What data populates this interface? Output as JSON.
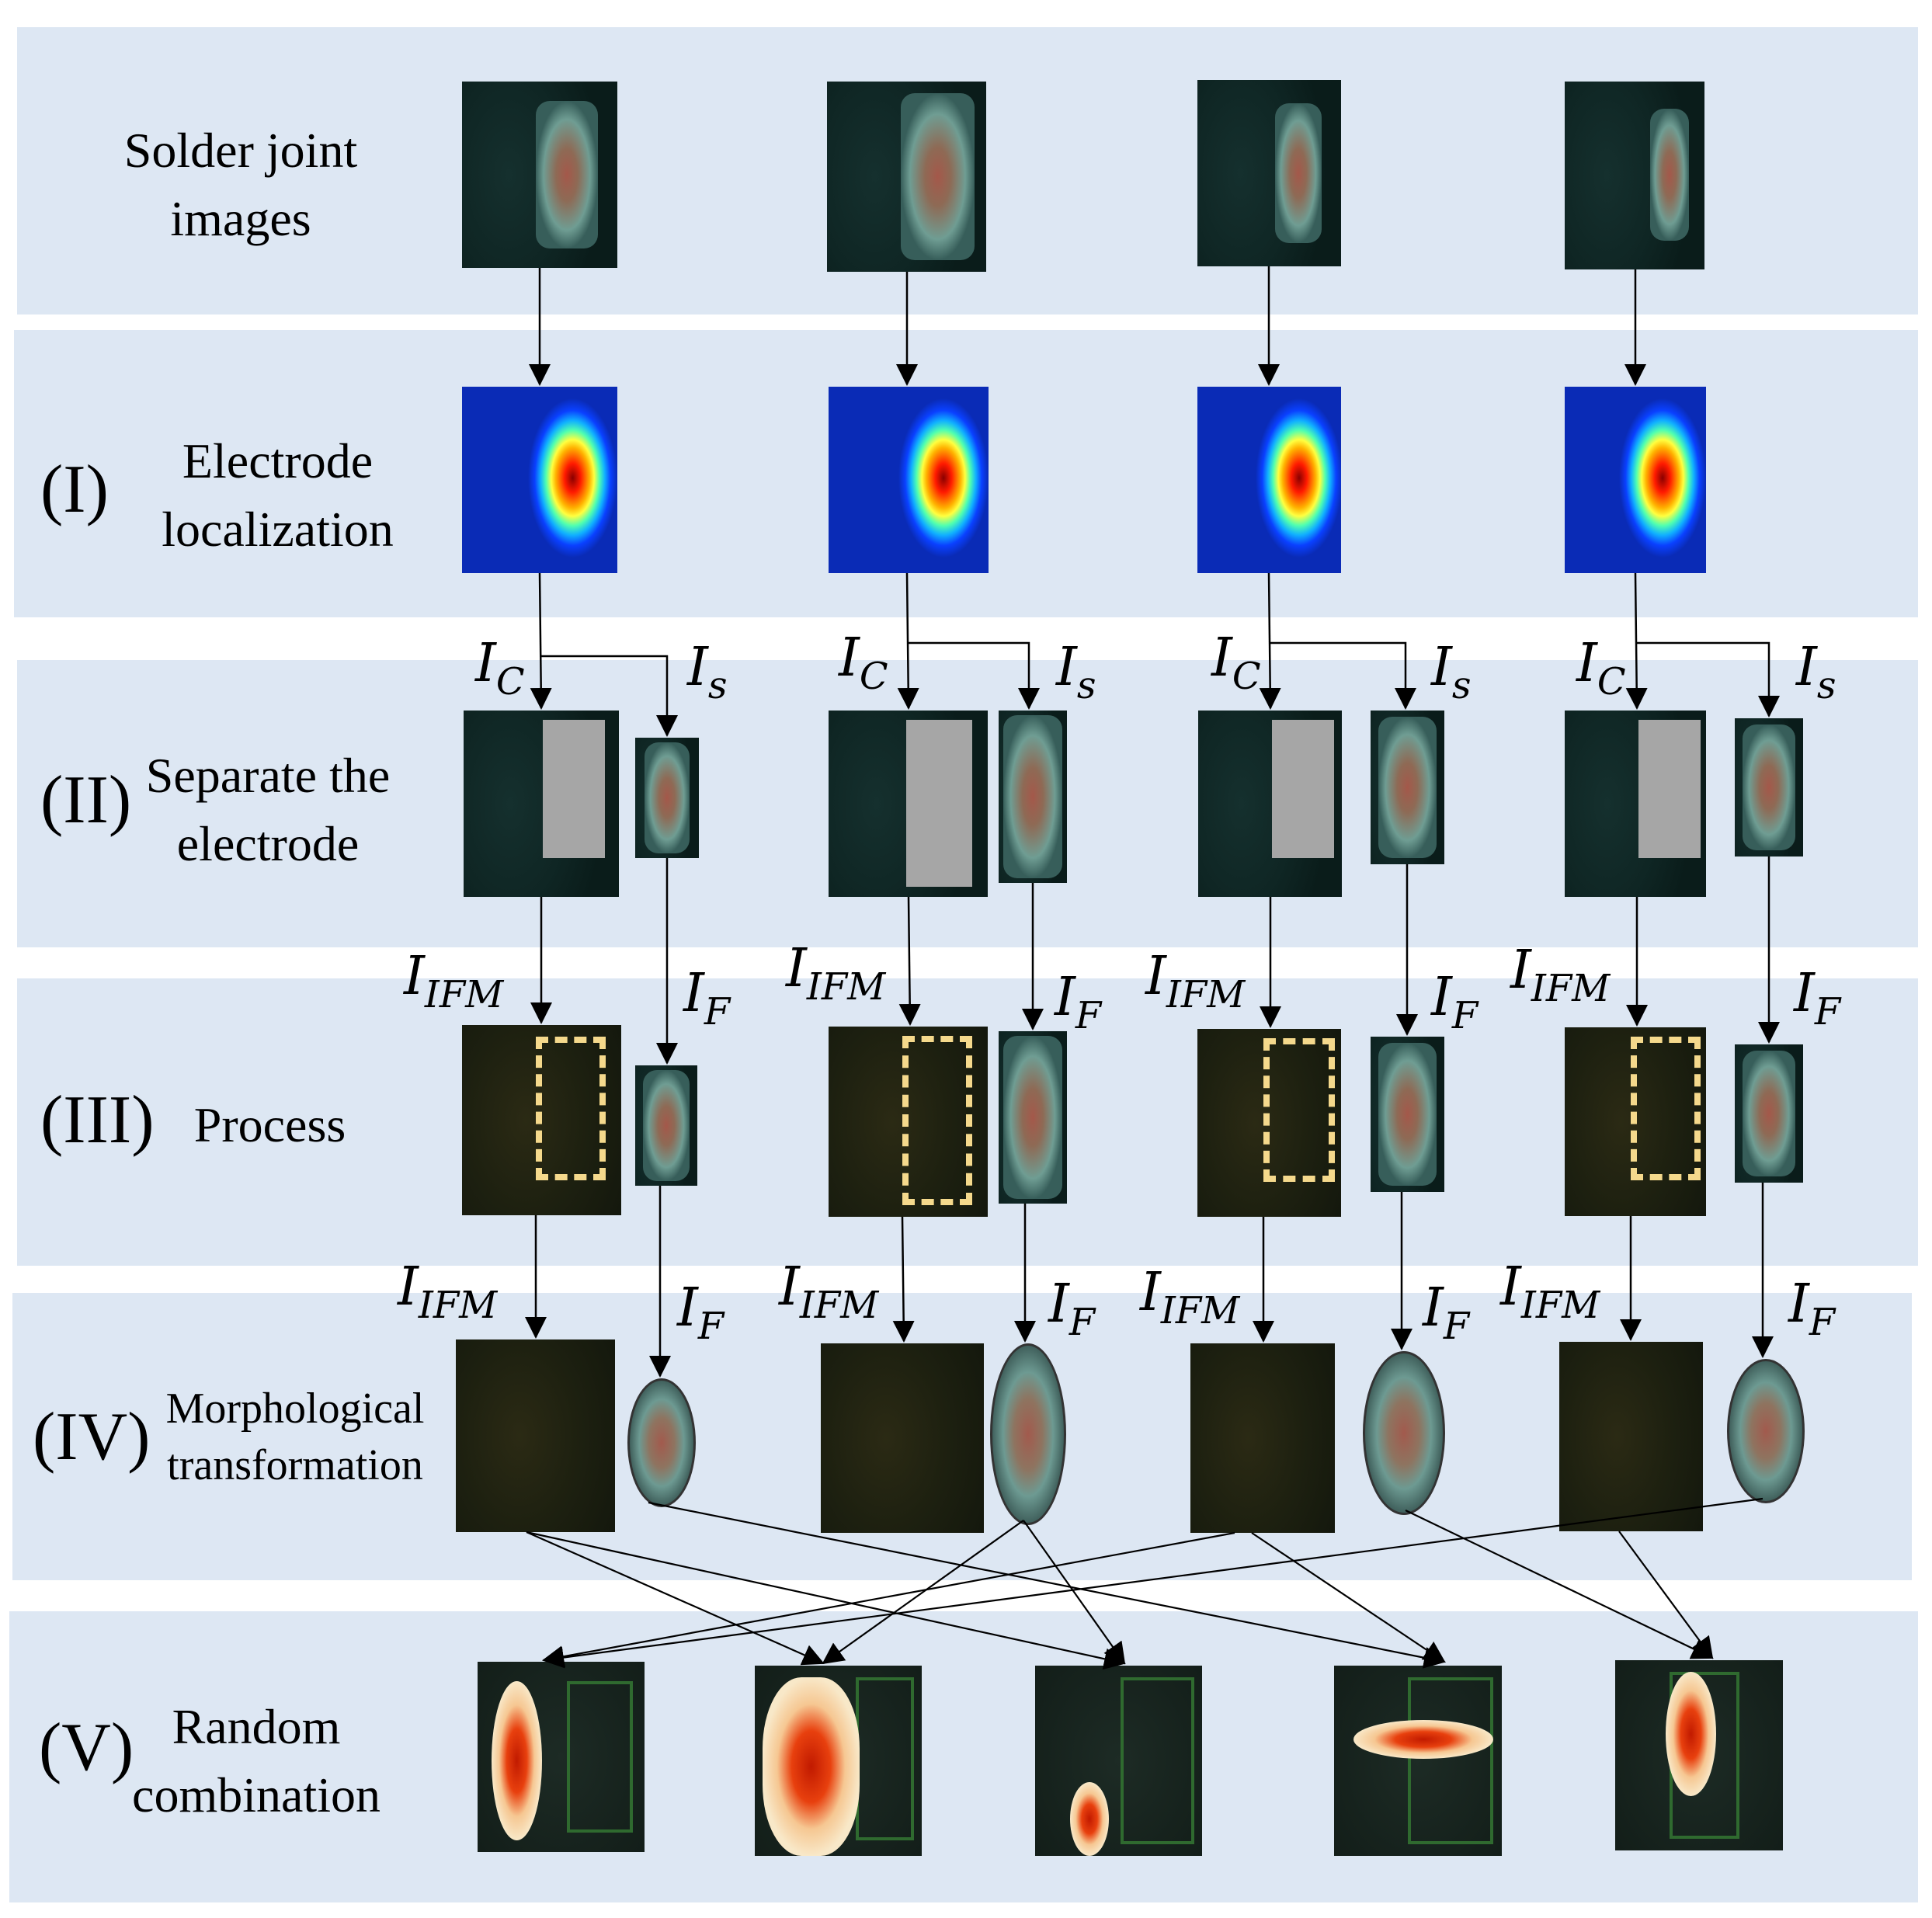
{
  "stages": {
    "s0": {
      "label_line1": "Solder joint",
      "label_line2": "images"
    },
    "s1": {
      "numeral": "(I)",
      "label_line1": "Electrode",
      "label_line2": "localization"
    },
    "s2": {
      "numeral": "(II)",
      "label_line1": "Separate the",
      "label_line2": "electrode"
    },
    "s3": {
      "numeral": "(III)",
      "label_line1": "Process"
    },
    "s4": {
      "numeral": "(IV)",
      "label_line1": "Morphological",
      "label_line2": "transformation"
    },
    "s5": {
      "numeral": "(V)",
      "label_line1": "Random",
      "label_line2": "combination"
    }
  },
  "vars": {
    "ic": {
      "base": "I",
      "sub": "C"
    },
    "is": {
      "base": "I",
      "sub": "s"
    },
    "iifm": {
      "base": "I",
      "sub": "IFM"
    },
    "if": {
      "base": "I",
      "sub": "F"
    }
  },
  "colors": {
    "band": "#dde7f3",
    "arrow": "#000000",
    "dashed_box": "#f5d98c",
    "heat_background": "#0a2bb6",
    "mask": "#a6a6a6"
  }
}
